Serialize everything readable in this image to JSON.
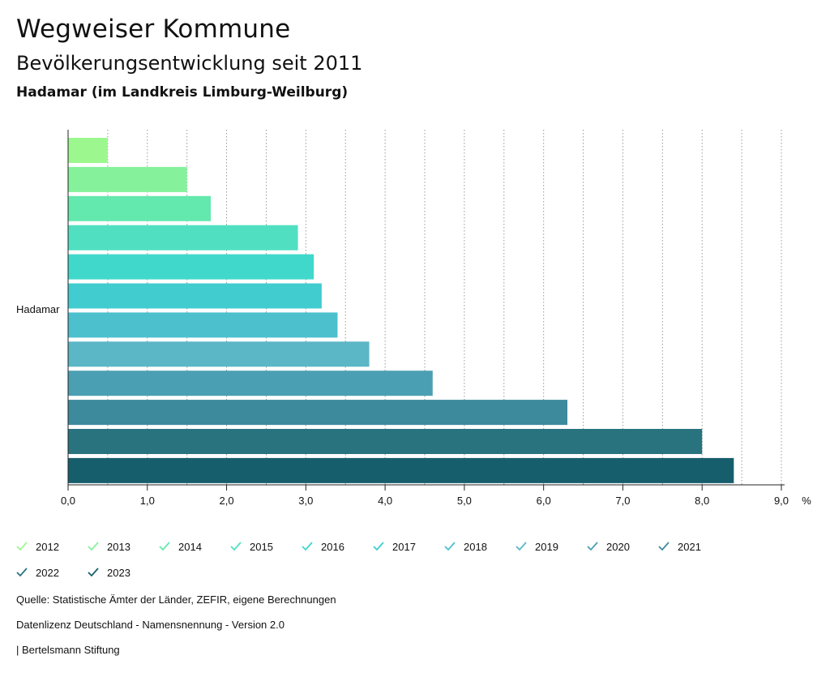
{
  "header": {
    "title": "Wegweiser Kommune",
    "subtitle": "Bevölkerungsentwicklung seit 2011",
    "region": "Hadamar (im Landkreis Limburg-Weilburg)"
  },
  "chart_data": {
    "type": "bar",
    "orientation": "horizontal",
    "category": "Hadamar",
    "unit": "%",
    "xlim": [
      0,
      9.0
    ],
    "ticks": [
      "0,0",
      "1,0",
      "2,0",
      "3,0",
      "4,0",
      "5,0",
      "6,0",
      "7,0",
      "8,0",
      "9,0"
    ],
    "grid": true,
    "series": [
      {
        "name": "2012",
        "value": 0.5,
        "color": "#9cf88e"
      },
      {
        "name": "2013",
        "value": 1.5,
        "color": "#85f29b"
      },
      {
        "name": "2014",
        "value": 1.8,
        "color": "#63e8ad"
      },
      {
        "name": "2015",
        "value": 2.9,
        "color": "#50e0c1"
      },
      {
        "name": "2016",
        "value": 3.1,
        "color": "#40d8ca"
      },
      {
        "name": "2017",
        "value": 3.2,
        "color": "#41ccd0"
      },
      {
        "name": "2018",
        "value": 3.4,
        "color": "#4cc0cd"
      },
      {
        "name": "2019",
        "value": 3.8,
        "color": "#5bb6c6"
      },
      {
        "name": "2020",
        "value": 4.6,
        "color": "#4b9fb2"
      },
      {
        "name": "2021",
        "value": 6.3,
        "color": "#3d8a9d"
      },
      {
        "name": "2022",
        "value": 8.0,
        "color": "#29737f"
      },
      {
        "name": "2023",
        "value": 8.4,
        "color": "#175e6d"
      }
    ]
  },
  "footer": {
    "source": "Quelle: Statistische Ämter der Länder, ZEFIR, eigene Berechnungen",
    "license": "Datenlizenz Deutschland - Namensnennung - Version 2.0",
    "publisher": "| Bertelsmann Stiftung"
  }
}
